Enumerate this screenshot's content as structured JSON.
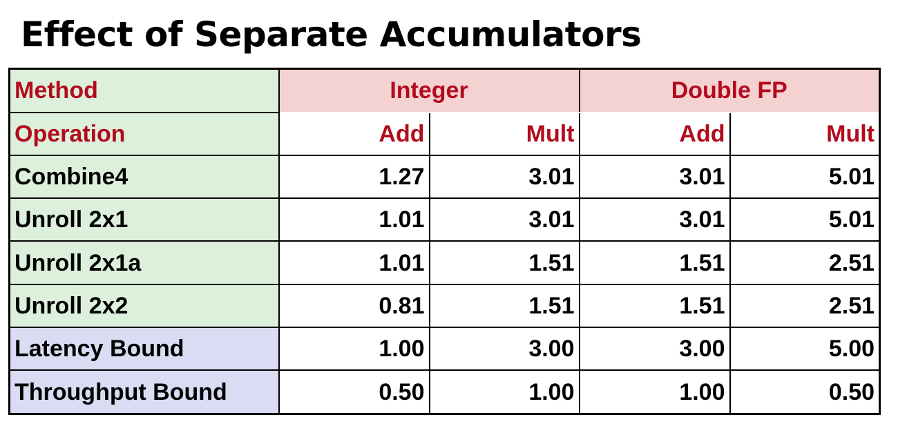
{
  "title": "Effect of Separate Accumulators",
  "colors": {
    "header_text": "#b20b1d",
    "method_column_bg": "#ddf0dc",
    "group_header_bg": "#f4d2d2",
    "bound_rows_bg": "#d9dcf2"
  },
  "table": {
    "method_label": "Method",
    "operation_label": "Operation",
    "groups": [
      "Integer",
      "Double FP"
    ],
    "operations": [
      "Add",
      "Mult",
      "Add",
      "Mult"
    ],
    "rows": [
      {
        "name": "Combine4",
        "values": [
          "1.27",
          "3.01",
          "3.01",
          "5.01"
        ],
        "kind": "method"
      },
      {
        "name": "Unroll 2x1",
        "values": [
          "1.01",
          "3.01",
          "3.01",
          "5.01"
        ],
        "kind": "method"
      },
      {
        "name": "Unroll 2x1a",
        "values": [
          "1.01",
          "1.51",
          "1.51",
          "2.51"
        ],
        "kind": "method"
      },
      {
        "name": "Unroll 2x2",
        "values": [
          "0.81",
          "1.51",
          "1.51",
          "2.51"
        ],
        "kind": "method"
      },
      {
        "name": "Latency Bound",
        "values": [
          "1.00",
          "3.00",
          "3.00",
          "5.00"
        ],
        "kind": "bound"
      },
      {
        "name": "Throughput Bound",
        "values": [
          "0.50",
          "1.00",
          "1.00",
          "0.50"
        ],
        "kind": "bound"
      }
    ]
  }
}
